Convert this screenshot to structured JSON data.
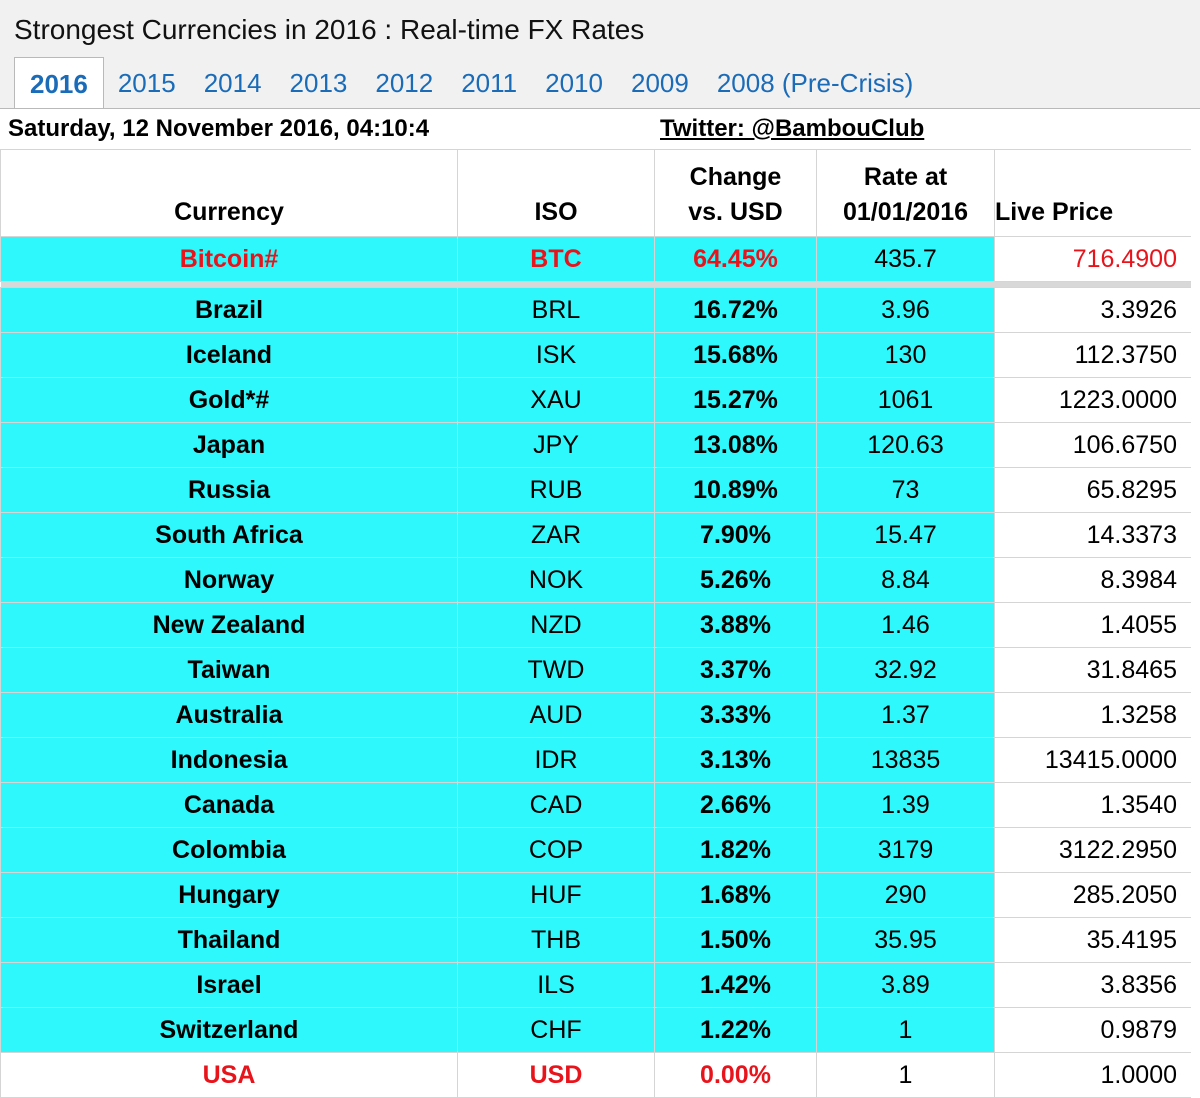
{
  "window": {
    "title": "Strongest Currencies in 2016 : Real-time FX Rates"
  },
  "tabs": [
    {
      "label": "2016",
      "active": true
    },
    {
      "label": "2015"
    },
    {
      "label": "2014"
    },
    {
      "label": "2013"
    },
    {
      "label": "2012"
    },
    {
      "label": "2011"
    },
    {
      "label": "2010"
    },
    {
      "label": "2009"
    },
    {
      "label": "2008 (Pre-Crisis)"
    }
  ],
  "info": {
    "datetime": "Saturday, 12 November 2016, 04:10:4",
    "twitter": "Twitter: @BambouClub"
  },
  "headers": {
    "currency": "Currency",
    "iso": "ISO",
    "change_line1": "Change",
    "change_line2": "vs. USD",
    "rate_line1": "Rate at",
    "rate_line2": "01/01/2016",
    "live": "Live Price"
  },
  "colors": {
    "highlight": "#2ef8fb",
    "red_text": "#e8141c",
    "tab_link": "#1a6bb8"
  },
  "bitcoin": {
    "currency": "Bitcoin#",
    "iso": "BTC",
    "change": "64.45%",
    "rate": "435.7",
    "live": "716.4900"
  },
  "rows": [
    {
      "currency": "Brazil",
      "iso": "BRL",
      "change": "16.72%",
      "rate": "3.96",
      "live": "3.3926"
    },
    {
      "currency": "Iceland",
      "iso": "ISK",
      "change": "15.68%",
      "rate": "130",
      "live": "112.3750"
    },
    {
      "currency": "Gold*#",
      "iso": "XAU",
      "change": "15.27%",
      "rate": "1061",
      "live": "1223.0000"
    },
    {
      "currency": "Japan",
      "iso": "JPY",
      "change": "13.08%",
      "rate": "120.63",
      "live": "106.6750"
    },
    {
      "currency": "Russia",
      "iso": "RUB",
      "change": "10.89%",
      "rate": "73",
      "live": "65.8295"
    },
    {
      "currency": "South Africa",
      "iso": "ZAR",
      "change": "7.90%",
      "rate": "15.47",
      "live": "14.3373"
    },
    {
      "currency": "Norway",
      "iso": "NOK",
      "change": "5.26%",
      "rate": "8.84",
      "live": "8.3984"
    },
    {
      "currency": "New Zealand",
      "iso": "NZD",
      "change": "3.88%",
      "rate": "1.46",
      "live": "1.4055"
    },
    {
      "currency": "Taiwan",
      "iso": "TWD",
      "change": "3.37%",
      "rate": "32.92",
      "live": "31.8465"
    },
    {
      "currency": "Australia",
      "iso": "AUD",
      "change": "3.33%",
      "rate": "1.37",
      "live": "1.3258"
    },
    {
      "currency": "Indonesia",
      "iso": "IDR",
      "change": "3.13%",
      "rate": "13835",
      "live": "13415.0000"
    },
    {
      "currency": "Canada",
      "iso": "CAD",
      "change": "2.66%",
      "rate": "1.39",
      "live": "1.3540"
    },
    {
      "currency": "Colombia",
      "iso": "COP",
      "change": "1.82%",
      "rate": "3179",
      "live": "3122.2950"
    },
    {
      "currency": "Hungary",
      "iso": "HUF",
      "change": "1.68%",
      "rate": "290",
      "live": "285.2050"
    },
    {
      "currency": "Thailand",
      "iso": "THB",
      "change": "1.50%",
      "rate": "35.95",
      "live": "35.4195"
    },
    {
      "currency": "Israel",
      "iso": "ILS",
      "change": "1.42%",
      "rate": "3.89",
      "live": "3.8356"
    },
    {
      "currency": "Switzerland",
      "iso": "CHF",
      "change": "1.22%",
      "rate": "1",
      "live": "0.9879"
    }
  ],
  "usa": {
    "currency": "USA",
    "iso": "USD",
    "change": "0.00%",
    "rate": "1",
    "live": "1.0000"
  }
}
